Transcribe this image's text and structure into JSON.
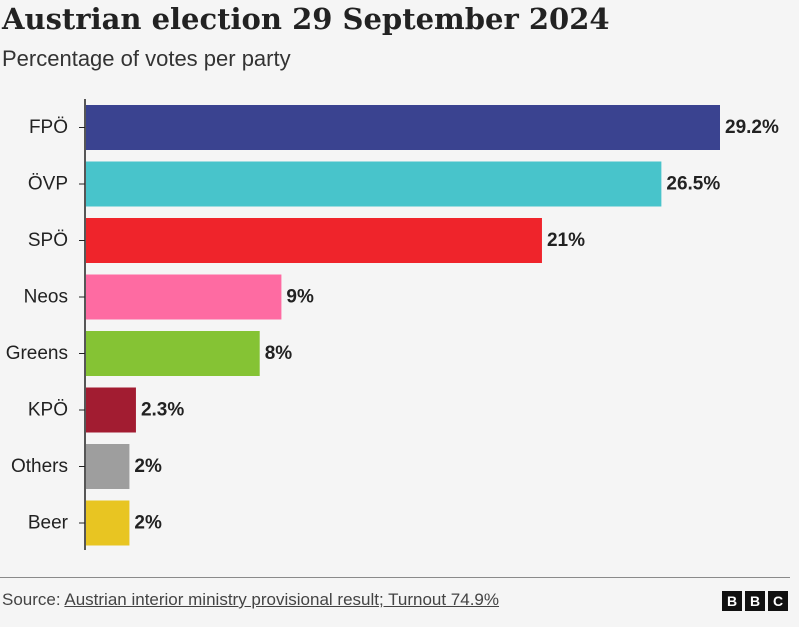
{
  "header": {
    "title": "Austrian election 29 September 2024",
    "subtitle": "Percentage of votes per party"
  },
  "footer": {
    "source_prefix": "Source: ",
    "source_link": "Austrian interior ministry provisional result; Turnout 74.9%",
    "logo_letters": [
      "B",
      "B",
      "C"
    ]
  },
  "chart_data": {
    "type": "bar",
    "orientation": "horizontal",
    "title": "Austrian election 29 September 2024",
    "subtitle": "Percentage of votes per party",
    "categories": [
      "FPÖ",
      "ÖVP",
      "SPÖ",
      "Neos",
      "Greens",
      "KPÖ",
      "Others",
      "Beer"
    ],
    "values": [
      29.2,
      26.5,
      21,
      9,
      8,
      2.3,
      2,
      2
    ],
    "value_labels": [
      "29.2%",
      "26.5%",
      "21%",
      "9%",
      "8%",
      "2.3%",
      "2%",
      "2%"
    ],
    "colors": [
      "#3a4390",
      "#48c4cb",
      "#ef242b",
      "#fe6ba2",
      "#85c334",
      "#a21c31",
      "#9e9e9e",
      "#e8c522"
    ],
    "xlim": [
      0,
      29.2
    ],
    "grid": false,
    "legend": "none"
  }
}
